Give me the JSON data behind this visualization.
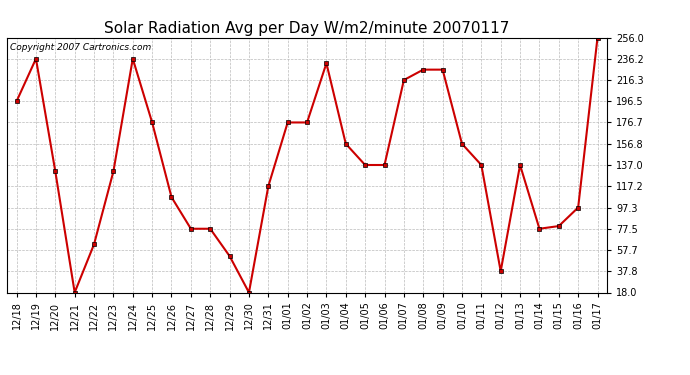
{
  "title": "Solar Radiation Avg per Day W/m2/minute 20070117",
  "copyright": "Copyright 2007 Cartronics.com",
  "dates": [
    "12/18",
    "12/19",
    "12/20",
    "12/21",
    "12/22",
    "12/23",
    "12/24",
    "12/25",
    "12/26",
    "12/27",
    "12/28",
    "12/29",
    "12/30",
    "12/31",
    "01/01",
    "01/02",
    "01/03",
    "01/04",
    "01/05",
    "01/06",
    "01/07",
    "01/08",
    "01/09",
    "01/10",
    "01/11",
    "01/12",
    "01/13",
    "01/14",
    "01/15",
    "01/16",
    "01/17"
  ],
  "values": [
    196.5,
    236.2,
    131.0,
    18.0,
    63.0,
    131.0,
    236.2,
    176.7,
    107.0,
    77.5,
    77.5,
    52.0,
    18.0,
    117.2,
    176.7,
    176.7,
    232.0,
    156.8,
    137.0,
    137.0,
    216.3,
    226.0,
    226.0,
    156.8,
    137.0,
    37.8,
    137.0,
    77.5,
    80.0,
    97.3,
    256.0
  ],
  "yticks": [
    18.0,
    37.8,
    57.7,
    77.5,
    97.3,
    117.2,
    137.0,
    156.8,
    176.7,
    196.5,
    216.3,
    236.2,
    256.0
  ],
  "line_color": "#cc0000",
  "marker_color": "#cc0000",
  "bg_color": "#ffffff",
  "grid_color": "#bbbbbb",
  "title_fontsize": 11,
  "copyright_fontsize": 6.5,
  "tick_fontsize": 7,
  "ymin": 18.0,
  "ymax": 256.0
}
